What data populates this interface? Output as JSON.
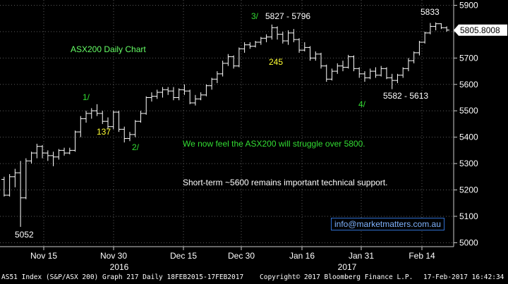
{
  "chart_data": {
    "type": "ohlc",
    "title": "ASX200 Daily Chart",
    "ylim": [
      4985,
      5920
    ],
    "y_ticks": [
      5000,
      5100,
      5200,
      5300,
      5400,
      5500,
      5600,
      5700,
      5800,
      5900
    ],
    "x_ticks": [
      "Nov 15",
      "Nov 30",
      "Dec 15",
      "Dec 30",
      "Jan 16",
      "Jan 31",
      "Feb 14"
    ],
    "year_labels": [
      "2016",
      "2017"
    ],
    "last_price": "5805.8008",
    "bars": [
      {
        "o": 5240,
        "h": 5250,
        "l": 5175,
        "c": 5180
      },
      {
        "o": 5180,
        "h": 5260,
        "l": 5175,
        "c": 5250
      },
      {
        "o": 5250,
        "h": 5280,
        "l": 5210,
        "c": 5265
      },
      {
        "o": 5265,
        "h": 5310,
        "l": 5060,
        "c": 5170
      },
      {
        "o": 5170,
        "h": 5320,
        "l": 5165,
        "c": 5310
      },
      {
        "o": 5310,
        "h": 5345,
        "l": 5300,
        "c": 5340
      },
      {
        "o": 5340,
        "h": 5375,
        "l": 5320,
        "c": 5365
      },
      {
        "o": 5365,
        "h": 5370,
        "l": 5320,
        "c": 5340
      },
      {
        "o": 5340,
        "h": 5350,
        "l": 5310,
        "c": 5330
      },
      {
        "o": 5330,
        "h": 5345,
        "l": 5290,
        "c": 5325
      },
      {
        "o": 5325,
        "h": 5355,
        "l": 5315,
        "c": 5350
      },
      {
        "o": 5350,
        "h": 5360,
        "l": 5330,
        "c": 5340
      },
      {
        "o": 5340,
        "h": 5360,
        "l": 5335,
        "c": 5350
      },
      {
        "o": 5350,
        "h": 5425,
        "l": 5345,
        "c": 5420
      },
      {
        "o": 5420,
        "h": 5480,
        "l": 5400,
        "c": 5470
      },
      {
        "o": 5470,
        "h": 5500,
        "l": 5455,
        "c": 5490
      },
      {
        "o": 5490,
        "h": 5510,
        "l": 5470,
        "c": 5500
      },
      {
        "o": 5500,
        "h": 5525,
        "l": 5480,
        "c": 5490
      },
      {
        "o": 5490,
        "h": 5500,
        "l": 5450,
        "c": 5460
      },
      {
        "o": 5460,
        "h": 5475,
        "l": 5430,
        "c": 5440
      },
      {
        "o": 5440,
        "h": 5500,
        "l": 5430,
        "c": 5495
      },
      {
        "o": 5495,
        "h": 5500,
        "l": 5420,
        "c": 5430
      },
      {
        "o": 5430,
        "h": 5440,
        "l": 5380,
        "c": 5395
      },
      {
        "o": 5395,
        "h": 5420,
        "l": 5385,
        "c": 5410
      },
      {
        "o": 5410,
        "h": 5465,
        "l": 5400,
        "c": 5460
      },
      {
        "o": 5460,
        "h": 5500,
        "l": 5455,
        "c": 5490
      },
      {
        "o": 5490,
        "h": 5555,
        "l": 5485,
        "c": 5550
      },
      {
        "o": 5550,
        "h": 5570,
        "l": 5535,
        "c": 5555
      },
      {
        "o": 5555,
        "h": 5580,
        "l": 5545,
        "c": 5570
      },
      {
        "o": 5570,
        "h": 5590,
        "l": 5550,
        "c": 5580
      },
      {
        "o": 5580,
        "h": 5590,
        "l": 5560,
        "c": 5575
      },
      {
        "o": 5575,
        "h": 5590,
        "l": 5540,
        "c": 5550
      },
      {
        "o": 5550,
        "h": 5585,
        "l": 5540,
        "c": 5580
      },
      {
        "o": 5580,
        "h": 5600,
        "l": 5560,
        "c": 5575
      },
      {
        "o": 5575,
        "h": 5580,
        "l": 5525,
        "c": 5530
      },
      {
        "o": 5530,
        "h": 5560,
        "l": 5520,
        "c": 5545
      },
      {
        "o": 5545,
        "h": 5570,
        "l": 5540,
        "c": 5560
      },
      {
        "o": 5560,
        "h": 5600,
        "l": 5555,
        "c": 5595
      },
      {
        "o": 5595,
        "h": 5625,
        "l": 5580,
        "c": 5620
      },
      {
        "o": 5620,
        "h": 5650,
        "l": 5605,
        "c": 5640
      },
      {
        "o": 5640,
        "h": 5690,
        "l": 5630,
        "c": 5680
      },
      {
        "o": 5680,
        "h": 5715,
        "l": 5670,
        "c": 5705
      },
      {
        "o": 5705,
        "h": 5710,
        "l": 5660,
        "c": 5670
      },
      {
        "o": 5670,
        "h": 5740,
        "l": 5665,
        "c": 5735
      },
      {
        "o": 5735,
        "h": 5760,
        "l": 5720,
        "c": 5750
      },
      {
        "o": 5750,
        "h": 5760,
        "l": 5735,
        "c": 5745
      },
      {
        "o": 5745,
        "h": 5765,
        "l": 5740,
        "c": 5760
      },
      {
        "o": 5760,
        "h": 5780,
        "l": 5750,
        "c": 5775
      },
      {
        "o": 5775,
        "h": 5790,
        "l": 5760,
        "c": 5780
      },
      {
        "o": 5780,
        "h": 5827,
        "l": 5770,
        "c": 5815
      },
      {
        "o": 5815,
        "h": 5820,
        "l": 5770,
        "c": 5790
      },
      {
        "o": 5790,
        "h": 5800,
        "l": 5755,
        "c": 5765
      },
      {
        "o": 5765,
        "h": 5805,
        "l": 5750,
        "c": 5795
      },
      {
        "o": 5795,
        "h": 5810,
        "l": 5760,
        "c": 5770
      },
      {
        "o": 5770,
        "h": 5775,
        "l": 5720,
        "c": 5730
      },
      {
        "o": 5730,
        "h": 5760,
        "l": 5725,
        "c": 5740
      },
      {
        "o": 5740,
        "h": 5745,
        "l": 5690,
        "c": 5700
      },
      {
        "o": 5700,
        "h": 5725,
        "l": 5690,
        "c": 5715
      },
      {
        "o": 5715,
        "h": 5720,
        "l": 5660,
        "c": 5670
      },
      {
        "o": 5670,
        "h": 5675,
        "l": 5610,
        "c": 5620
      },
      {
        "o": 5620,
        "h": 5660,
        "l": 5615,
        "c": 5650
      },
      {
        "o": 5650,
        "h": 5680,
        "l": 5640,
        "c": 5670
      },
      {
        "o": 5670,
        "h": 5690,
        "l": 5650,
        "c": 5665
      },
      {
        "o": 5665,
        "h": 5712,
        "l": 5660,
        "c": 5705
      },
      {
        "o": 5705,
        "h": 5710,
        "l": 5650,
        "c": 5660
      },
      {
        "o": 5660,
        "h": 5665,
        "l": 5625,
        "c": 5640
      },
      {
        "o": 5640,
        "h": 5650,
        "l": 5610,
        "c": 5625
      },
      {
        "o": 5625,
        "h": 5660,
        "l": 5620,
        "c": 5650
      },
      {
        "o": 5650,
        "h": 5665,
        "l": 5625,
        "c": 5635
      },
      {
        "o": 5635,
        "h": 5670,
        "l": 5630,
        "c": 5660
      },
      {
        "o": 5660,
        "h": 5665,
        "l": 5620,
        "c": 5625
      },
      {
        "o": 5625,
        "h": 5640,
        "l": 5582,
        "c": 5615
      },
      {
        "o": 5615,
        "h": 5640,
        "l": 5605,
        "c": 5635
      },
      {
        "o": 5635,
        "h": 5665,
        "l": 5625,
        "c": 5660
      },
      {
        "o": 5660,
        "h": 5700,
        "l": 5650,
        "c": 5690
      },
      {
        "o": 5690,
        "h": 5725,
        "l": 5680,
        "c": 5720
      },
      {
        "o": 5720,
        "h": 5765,
        "l": 5710,
        "c": 5760
      },
      {
        "o": 5760,
        "h": 5800,
        "l": 5755,
        "c": 5795
      },
      {
        "o": 5795,
        "h": 5833,
        "l": 5790,
        "c": 5820
      },
      {
        "o": 5820,
        "h": 5835,
        "l": 5805,
        "c": 5830
      },
      {
        "o": 5830,
        "h": 5832,
        "l": 5810,
        "c": 5815
      },
      {
        "o": 5815,
        "h": 5820,
        "l": 5800,
        "c": 5806
      }
    ],
    "annotations": {
      "title_color": "#66ff66",
      "count_color": "#ffff33",
      "wave_color": "#33dd33",
      "wave_1": "1/",
      "wave_2": "2/",
      "wave_3": "3/",
      "wave_4": "4/",
      "level_5052": "5052",
      "level_137": "137",
      "level_245": "245",
      "range_3": "5827 - 5796",
      "range_4": "5582 - 5613",
      "level_5833": "5833",
      "comment_green": "We now feel the ASX200 will struggle over 5800.",
      "comment_white": "Short-term ~5600 remains important technical support."
    }
  },
  "email": "info@marketmatters.com.au",
  "footer": {
    "left": "AS51 Index (S&P/ASX 200) Graph 217  Daily 18FEB2015-17FEB2017",
    "center": "Copyright© 2017 Bloomberg Finance L.P.",
    "right": "17-Feb-2017 16:42:34"
  }
}
